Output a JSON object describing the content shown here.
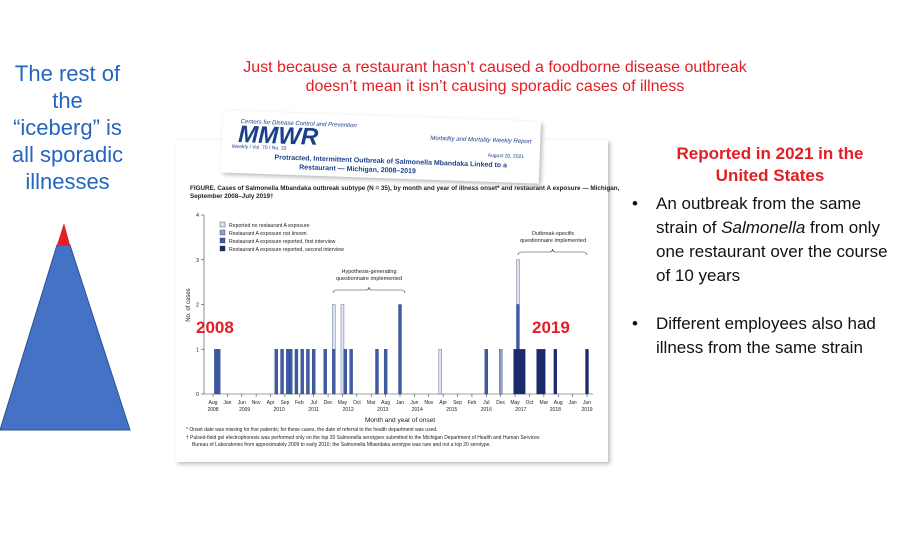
{
  "left_text": [
    "The rest of",
    "the",
    "“iceberg” is",
    "all sporadic",
    "illnesses"
  ],
  "top_text": [
    "Just because a restaurant hasn’t caused a foodborne disease outbreak",
    "doesn’t mean it isn’t causing sporadic cases of illness"
  ],
  "mmwr": {
    "agency": "Centers for Disease Control and Prevention",
    "logo": "MMWR",
    "subtitle": "Morbidity and Mortality Weekly Report",
    "issue": "Weekly / Vol. 70 / No. 33",
    "date": "August 20, 2021",
    "headline": [
      "Protracted, Intermittent Outbreak of Salmonella Mbandaka Linked to a",
      "Restaurant — Michigan, 2008–2019"
    ]
  },
  "figure_title": [
    "FIGURE. Cases of Salmonella Mbandaka outbreak subtype (N = 35), by month and year of illness onset* and restaurant A exposure — Michigan,",
    "September 2008–July 2019†"
  ],
  "footnotes": [
    "* Onset date was missing for five patients; for these cases, the date of referral to the health department was used.",
    "† Pulsed-field gel electrophoresis was performed only on the top 20 Salmonella serotypes submitted to the Michigan Department of Health and Human Services",
    "Bureau of Laboratories from approximately 2009 to early 2010; the Salmonella Mbandaka serotype was rare and not a top 20 serotype."
  ],
  "overlay_labels": [
    "2008",
    "2019"
  ],
  "right_heading": "Reported in 2021 in the United States",
  "bullets": [
    [
      "An outbreak from the same strain of ",
      "Salmonella",
      " from only one restaurant over the course of 10 years"
    ],
    [
      "Different employees also had illness from the same strain"
    ]
  ],
  "chart_data": {
    "type": "bar",
    "stacked": true,
    "y_label": "No. of cases",
    "x_label": "Month and year of onset",
    "ylim": [
      0,
      4
    ],
    "yticks": [
      0,
      1,
      2,
      3,
      4
    ],
    "xlim": [
      "2008-08",
      "2019-06"
    ],
    "xticks": [
      {
        "value": "2008-08",
        "label": "Aug"
      },
      {
        "value": "2009-01",
        "label": "Jan"
      },
      {
        "value": "2009-06",
        "label": "Jun"
      },
      {
        "value": "2009-11",
        "label": "Nov"
      },
      {
        "value": "2010-04",
        "label": "Apr"
      },
      {
        "value": "2010-09",
        "label": "Sep"
      },
      {
        "value": "2011-02",
        "label": "Feb"
      },
      {
        "value": "2011-07",
        "label": "Jul"
      },
      {
        "value": "2011-12",
        "label": "Dec"
      },
      {
        "value": "2012-05",
        "label": "May"
      },
      {
        "value": "2012-10",
        "label": "Oct"
      },
      {
        "value": "2013-03",
        "label": "Mar"
      },
      {
        "value": "2013-08",
        "label": "Aug"
      },
      {
        "value": "2014-01",
        "label": "Jan"
      },
      {
        "value": "2014-06",
        "label": "Jun"
      },
      {
        "value": "2014-11",
        "label": "Nov"
      },
      {
        "value": "2015-04",
        "label": "Apr"
      },
      {
        "value": "2015-09",
        "label": "Sep"
      },
      {
        "value": "2016-02",
        "label": "Feb"
      },
      {
        "value": "2016-07",
        "label": "Jul"
      },
      {
        "value": "2016-12",
        "label": "Dec"
      },
      {
        "value": "2017-05",
        "label": "May"
      },
      {
        "value": "2017-10",
        "label": "Oct"
      },
      {
        "value": "2018-03",
        "label": "Mar"
      },
      {
        "value": "2018-08",
        "label": "Aug"
      },
      {
        "value": "2019-01",
        "label": "Jan"
      },
      {
        "value": "2019-06",
        "label": "Jun"
      }
    ],
    "years": [
      "2008",
      "2009",
      "2010",
      "2011",
      "2012",
      "2013",
      "2014",
      "2015",
      "2016",
      "2017",
      "2018",
      "2019"
    ],
    "x": [
      "2008-09",
      "2008-10",
      "2010-06",
      "2010-08",
      "2010-10",
      "2010-11",
      "2011-01",
      "2011-03",
      "2011-05",
      "2011-07",
      "2011-11",
      "2012-02",
      "2012-05",
      "2012-06",
      "2012-08",
      "2013-05",
      "2013-08",
      "2014-01",
      "2015-03",
      "2016-07",
      "2016-12",
      "2017-05",
      "2017-06",
      "2017-07",
      "2017-08",
      "2018-01",
      "2018-02",
      "2018-03",
      "2018-07",
      "2019-06"
    ],
    "series": [
      {
        "name": "Reported no restaurant A exposure",
        "color": "#dde2ee",
        "values": [
          null,
          null,
          null,
          null,
          null,
          null,
          null,
          null,
          null,
          null,
          null,
          1,
          2,
          null,
          null,
          null,
          null,
          null,
          1,
          null,
          null,
          null,
          1,
          null,
          null,
          null,
          null,
          null,
          null,
          null
        ]
      },
      {
        "name": "Restaurant A exposure not known",
        "color": "#8ea2c9",
        "values": [
          null,
          null,
          null,
          null,
          null,
          null,
          null,
          null,
          null,
          null,
          null,
          null,
          null,
          null,
          null,
          null,
          null,
          null,
          null,
          null,
          1,
          null,
          null,
          null,
          null,
          null,
          null,
          null,
          null,
          null
        ]
      },
      {
        "name": "Restaurant A exposure reported, first interview",
        "color": "#3e5ca6",
        "values": [
          1,
          1,
          1,
          1,
          1,
          1,
          1,
          1,
          1,
          1,
          1,
          1,
          null,
          1,
          1,
          1,
          1,
          2,
          null,
          1,
          null,
          null,
          1,
          null,
          null,
          null,
          null,
          null,
          null,
          null
        ]
      },
      {
        "name": "Restaurant A exposure reported, second interview",
        "color": "#1b2a6b",
        "values": [
          null,
          null,
          null,
          null,
          null,
          null,
          null,
          null,
          null,
          null,
          null,
          null,
          null,
          null,
          null,
          null,
          null,
          null,
          null,
          null,
          null,
          1,
          1,
          1,
          1,
          1,
          1,
          1,
          1,
          1
        ]
      }
    ],
    "annotations": [
      [
        "Hypothesis-generating",
        "questionnaire implemented"
      ],
      [
        "Outbreak-specific",
        "questionnaire implemented"
      ]
    ]
  }
}
